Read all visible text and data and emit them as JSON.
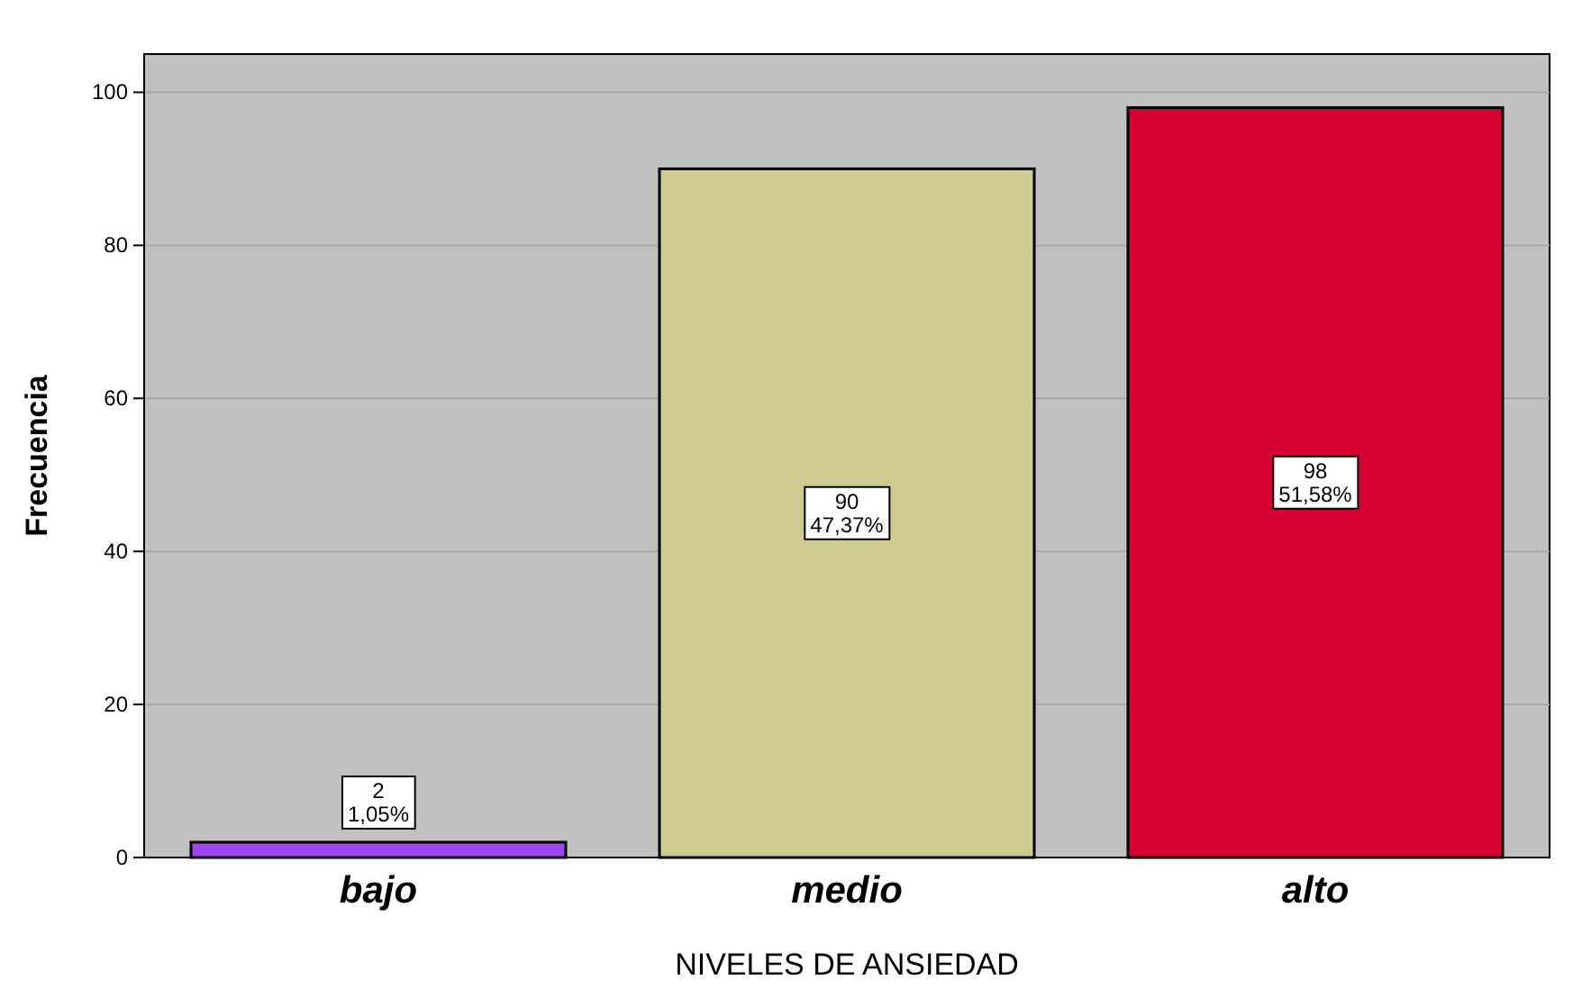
{
  "chart_data": {
    "type": "bar",
    "xlabel": "NIVELES DE ANSIEDAD",
    "ylabel": "Frecuencia",
    "categories": [
      "bajo",
      "medio",
      "alto"
    ],
    "values": [
      2,
      90,
      98
    ],
    "colors": [
      "#9e45ee",
      "#cfca90",
      "#d60032"
    ],
    "value_labels": [
      "2\n1,05%",
      "90\n47,37%",
      "98\n51,58%"
    ],
    "ylim": [
      0,
      105
    ],
    "yticks": [
      0,
      20,
      40,
      60,
      80,
      100
    ],
    "grid": "y"
  }
}
